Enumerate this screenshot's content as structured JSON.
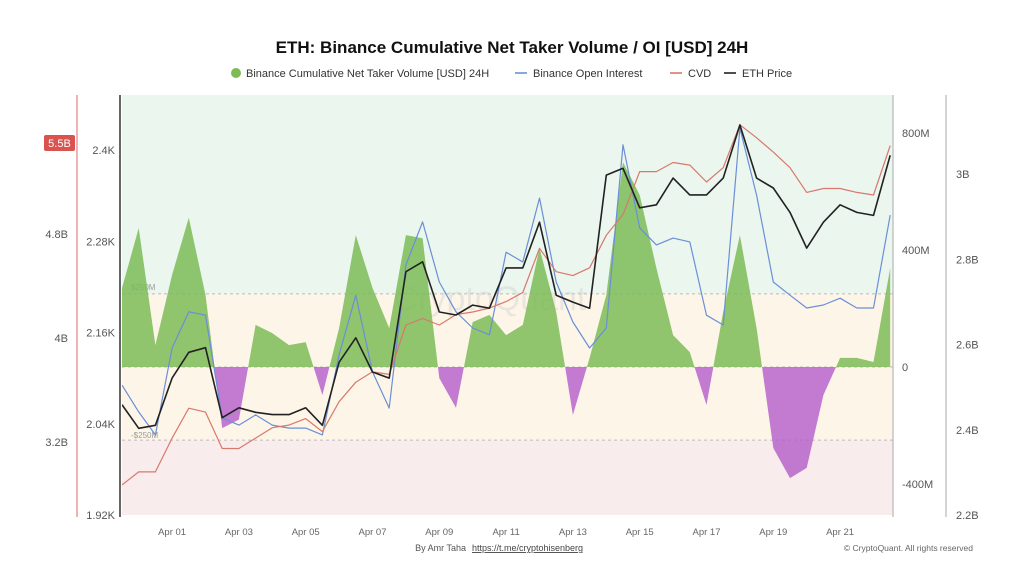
{
  "chart_data": {
    "type": "area+line",
    "title": "ETH: Binance Cumulative Net Taker Volume / OI [USD] 24H",
    "legend": {
      "placement": "top",
      "entries": [
        {
          "label": "Binance Cumulative Net Taker Volume [USD] 24H",
          "color": "#7dbb57",
          "marker": "dot"
        },
        {
          "label": "Binance Open Interest",
          "color": "#6a8fd8",
          "marker": "line"
        },
        {
          "label": "CVD",
          "color": "#d9786c",
          "marker": "line"
        },
        {
          "label": "ETH Price",
          "color": "#222222",
          "marker": "line"
        }
      ]
    },
    "x_ticks": [
      "Apr 01",
      "Apr 03",
      "Apr 05",
      "Apr 07",
      "Apr 09",
      "Apr 11",
      "Apr 13",
      "Apr 15",
      "Apr 17",
      "Apr 19",
      "Apr 21"
    ],
    "x": [
      "Mar 30 12:00",
      "Mar 31 00:00",
      "Mar 31 12:00",
      "Apr 01 00:00",
      "Apr 01 12:00",
      "Apr 02 00:00",
      "Apr 02 12:00",
      "Apr 03 00:00",
      "Apr 03 12:00",
      "Apr 04 00:00",
      "Apr 04 12:00",
      "Apr 05 00:00",
      "Apr 05 12:00",
      "Apr 06 00:00",
      "Apr 06 12:00",
      "Apr 07 00:00",
      "Apr 07 12:00",
      "Apr 08 00:00",
      "Apr 08 12:00",
      "Apr 09 00:00",
      "Apr 09 12:00",
      "Apr 10 00:00",
      "Apr 10 12:00",
      "Apr 11 00:00",
      "Apr 11 12:00",
      "Apr 12 00:00",
      "Apr 12 12:00",
      "Apr 13 00:00",
      "Apr 13 12:00",
      "Apr 14 00:00",
      "Apr 14 12:00",
      "Apr 15 00:00",
      "Apr 15 12:00",
      "Apr 16 00:00",
      "Apr 16 12:00",
      "Apr 17 00:00",
      "Apr 17 12:00",
      "Apr 18 00:00",
      "Apr 18 12:00",
      "Apr 19 00:00",
      "Apr 19 12:00",
      "Apr 20 00:00",
      "Apr 20 12:00",
      "Apr 21 00:00",
      "Apr 21 12:00",
      "Apr 22 00:00",
      "Apr 22 12:00"
    ],
    "axes": {
      "cvd": {
        "ticks": [
          "3.2B",
          "4B",
          "4.8B",
          "5.5B"
        ],
        "range": [
          2.8,
          5.9
        ],
        "unit": "B",
        "current_value_label": "5.5B",
        "color": "#d9534f"
      },
      "price": {
        "ticks": [
          "1.92K",
          "2.04K",
          "2.16K",
          "2.28K",
          "2.4K"
        ],
        "range": [
          1920,
          2400
        ]
      },
      "net_taker": {
        "ticks": [
          "-400M",
          "0",
          "400M",
          "800M"
        ],
        "range": [
          -500,
          900
        ],
        "unit": "M"
      },
      "oi": {
        "ticks": [
          "2.2B",
          "2.4B",
          "2.6B",
          "2.8B",
          "3B"
        ],
        "range": [
          2.2,
          3.2
        ],
        "unit": "B"
      }
    },
    "bands": [
      {
        "label": "$250M",
        "value": 250,
        "color_above": "#eaf6ee"
      },
      {
        "label": "-$250M",
        "value": -250,
        "color_between": "#fdf6e8",
        "color_below": "#f9ecec"
      }
    ],
    "series": [
      {
        "name": "Binance Cumulative Net Taker Volume [USD] 24H",
        "axis": "net_taker",
        "unit": "M USD",
        "positive_color": "#7dbb57",
        "negative_color": "#b35cc9",
        "values": [
          270,
          475,
          75,
          315,
          510,
          246,
          -209,
          -180,
          144,
          116,
          75,
          85,
          -96,
          133,
          451,
          270,
          133,
          451,
          440,
          -38,
          -140,
          154,
          178,
          109,
          144,
          407,
          188,
          -164,
          31,
          246,
          700,
          588,
          338,
          109,
          51,
          -130,
          188,
          451,
          133,
          -277,
          -380,
          -345,
          -96,
          31,
          31,
          17,
          338
        ]
      },
      {
        "name": "Binance Open Interest",
        "axis": "oi",
        "unit": "B USD",
        "color": "#6a8fd8",
        "values": [
          2.505,
          2.442,
          2.388,
          2.592,
          2.677,
          2.669,
          2.428,
          2.411,
          2.435,
          2.411,
          2.404,
          2.404,
          2.388,
          2.576,
          2.716,
          2.536,
          2.451,
          2.787,
          2.888,
          2.747,
          2.677,
          2.639,
          2.623,
          2.817,
          2.794,
          2.944,
          2.747,
          2.653,
          2.592,
          2.639,
          3.069,
          2.874,
          2.834,
          2.85,
          2.841,
          2.669,
          2.646,
          3.108,
          2.951,
          2.747,
          2.716,
          2.686,
          2.693,
          2.709,
          2.686,
          2.686,
          2.904
        ]
      },
      {
        "name": "CVD",
        "axis": "cvd",
        "unit": "B USD",
        "color": "#d9786c",
        "values": [
          2.87,
          2.97,
          2.97,
          3.23,
          3.46,
          3.43,
          3.15,
          3.15,
          3.23,
          3.31,
          3.33,
          3.38,
          3.28,
          3.51,
          3.66,
          3.74,
          3.72,
          4.1,
          4.15,
          4.1,
          4.18,
          4.2,
          4.23,
          4.28,
          4.35,
          4.69,
          4.51,
          4.48,
          4.54,
          4.79,
          4.95,
          5.28,
          5.28,
          5.35,
          5.33,
          5.2,
          5.31,
          5.64,
          5.54,
          5.43,
          5.31,
          5.12,
          5.15,
          5.15,
          5.12,
          5.1,
          5.48
        ]
      },
      {
        "name": "ETH Price",
        "axis": "price",
        "unit": "USD",
        "color": "#222222",
        "values": [
          2065,
          2034,
          2038,
          2100,
          2134,
          2140,
          2048,
          2061,
          2055,
          2052,
          2052,
          2061,
          2038,
          2121,
          2153,
          2108,
          2100,
          2240,
          2253,
          2187,
          2183,
          2196,
          2192,
          2245,
          2245,
          2305,
          2209,
          2200,
          2192,
          2367,
          2376,
          2324,
          2328,
          2363,
          2341,
          2341,
          2363,
          2433,
          2363,
          2350,
          2318,
          2271,
          2305,
          2328,
          2318,
          2314,
          2393
        ]
      }
    ],
    "grid": false,
    "watermark": "CryptoQuant"
  },
  "footer": {
    "author": "By Amr Taha",
    "link": "https://t.me/cryptohisenberg",
    "copyright": "© CryptoQuant. All rights reserved"
  }
}
